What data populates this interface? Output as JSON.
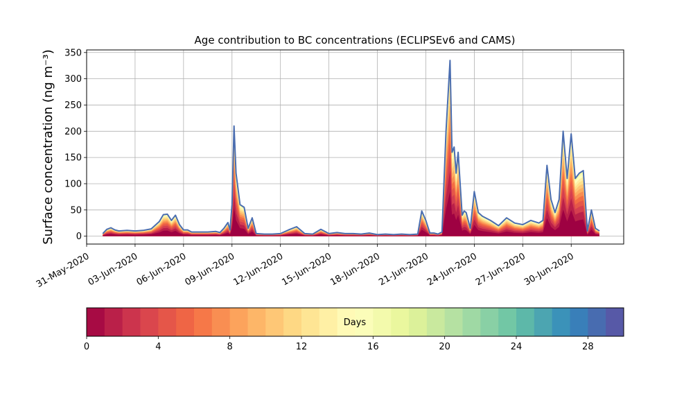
{
  "chart_data": {
    "type": "area",
    "title": "Age contribution to BC concentrations (ECLIPSEv6 and CAMS)",
    "ylabel": "Surface concentration (ng m⁻³)",
    "xlabel": "",
    "ylim": [
      -15,
      355
    ],
    "xlim": [
      "2020-05-31T00:00",
      "2020-07-03T06:00"
    ],
    "grid": true,
    "x_ticks": [
      "31-May-2020",
      "03-Jun-2020",
      "06-Jun-2020",
      "09-Jun-2020",
      "12-Jun-2020",
      "15-Jun-2020",
      "18-Jun-2020",
      "21-Jun-2020",
      "24-Jun-2020",
      "27-Jun-2020",
      "30-Jun-2020"
    ],
    "y_ticks": [
      0,
      50,
      100,
      150,
      200,
      250,
      300,
      350
    ],
    "total": {
      "x": [
        "2020-06-01T00:00",
        "2020-06-01T06:00",
        "2020-06-01T12:00",
        "2020-06-01T18:00",
        "2020-06-02T00:00",
        "2020-06-02T12:00",
        "2020-06-03T00:00",
        "2020-06-03T12:00",
        "2020-06-04T00:00",
        "2020-06-04T12:00",
        "2020-06-04T18:00",
        "2020-06-05T00:00",
        "2020-06-05T06:00",
        "2020-06-05T12:00",
        "2020-06-05T18:00",
        "2020-06-06T00:00",
        "2020-06-06T06:00",
        "2020-06-06T12:00",
        "2020-06-07T00:00",
        "2020-06-07T12:00",
        "2020-06-08T00:00",
        "2020-06-08T06:00",
        "2020-06-08T12:00",
        "2020-06-08T18:00",
        "2020-06-08T21:00",
        "2020-06-09T00:00",
        "2020-06-09T03:00",
        "2020-06-09T06:00",
        "2020-06-09T12:00",
        "2020-06-09T18:00",
        "2020-06-10T00:00",
        "2020-06-10T06:00",
        "2020-06-10T12:00",
        "2020-06-11T00:00",
        "2020-06-11T12:00",
        "2020-06-12T00:00",
        "2020-06-12T12:00",
        "2020-06-13T00:00",
        "2020-06-13T12:00",
        "2020-06-14T00:00",
        "2020-06-14T12:00",
        "2020-06-15T00:00",
        "2020-06-15T12:00",
        "2020-06-16T00:00",
        "2020-06-16T12:00",
        "2020-06-17T00:00",
        "2020-06-17T12:00",
        "2020-06-18T00:00",
        "2020-06-18T12:00",
        "2020-06-19T00:00",
        "2020-06-19T12:00",
        "2020-06-20T00:00",
        "2020-06-20T12:00",
        "2020-06-20T18:00",
        "2020-06-21T00:00",
        "2020-06-21T06:00",
        "2020-06-21T12:00",
        "2020-06-21T18:00",
        "2020-06-22T00:00",
        "2020-06-22T06:00",
        "2020-06-22T12:00",
        "2020-06-22T15:00",
        "2020-06-22T18:00",
        "2020-06-22T21:00",
        "2020-06-23T00:00",
        "2020-06-23T06:00",
        "2020-06-23T09:00",
        "2020-06-23T12:00",
        "2020-06-23T18:00",
        "2020-06-24T00:00",
        "2020-06-24T06:00",
        "2020-06-24T12:00",
        "2020-06-25T00:00",
        "2020-06-25T12:00",
        "2020-06-26T00:00",
        "2020-06-26T12:00",
        "2020-06-27T00:00",
        "2020-06-27T12:00",
        "2020-06-28T00:00",
        "2020-06-28T06:00",
        "2020-06-28T12:00",
        "2020-06-28T18:00",
        "2020-06-29T00:00",
        "2020-06-29T06:00",
        "2020-06-29T12:00",
        "2020-06-29T18:00",
        "2020-06-30T00:00",
        "2020-06-30T06:00",
        "2020-06-30T12:00",
        "2020-06-30T18:00",
        "2020-07-01T00:00",
        "2020-07-01T06:00",
        "2020-07-01T12:00",
        "2020-07-01T18:00"
      ],
      "y": [
        5,
        13,
        16,
        12,
        10,
        11,
        10,
        11,
        14,
        28,
        41,
        42,
        30,
        40,
        22,
        12,
        12,
        8,
        8,
        8,
        9,
        7,
        15,
        26,
        12,
        60,
        210,
        120,
        60,
        55,
        15,
        35,
        5,
        4,
        4,
        5,
        12,
        18,
        5,
        4,
        13,
        5,
        7,
        5,
        5,
        4,
        6,
        3,
        4,
        3,
        4,
        3,
        4,
        48,
        30,
        6,
        6,
        4,
        8,
        200,
        335,
        160,
        170,
        120,
        160,
        40,
        48,
        45,
        15,
        85,
        45,
        38,
        30,
        20,
        35,
        25,
        22,
        30,
        25,
        30,
        135,
        70,
        45,
        70,
        200,
        110,
        195,
        110,
        120,
        125,
        10,
        50,
        15,
        10
      ]
    },
    "colorbar": {
      "label": "Days",
      "range": [
        0,
        30
      ],
      "ticks": [
        0,
        4,
        8,
        12,
        16,
        20,
        24,
        28
      ],
      "colormap": "Spectral",
      "colors": [
        "#9e0142",
        "#d53e4f",
        "#f46d43",
        "#fdae61",
        "#fee08b",
        "#ffffbf",
        "#e6f598",
        "#abdda4",
        "#66c2a5",
        "#3288bd",
        "#5e4fa2"
      ]
    }
  }
}
